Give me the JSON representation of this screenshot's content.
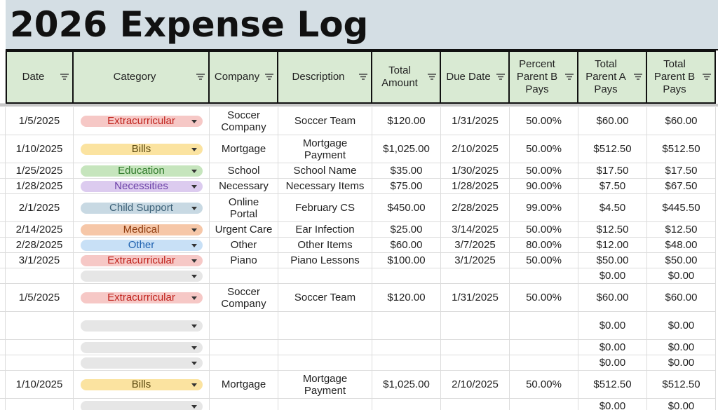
{
  "title": "2026 Expense Log",
  "table": {
    "headers": [
      "Date",
      "Category",
      "Company",
      "Description",
      "Total\nAmount",
      "Due Date",
      "Percent\nParent B\nPays",
      "Total\nParent A\nPays",
      "Total\nParent B\nPays"
    ],
    "rows": [
      {
        "date": "1/5/2025",
        "category": "Extracurricular",
        "category_bg": "#f6c8c6",
        "category_fg": "#c0231d",
        "company": "Soccer\nCompany",
        "description": "Soccer Team",
        "total": "$120.00",
        "due": "1/31/2025",
        "percent": "50.00%",
        "parent_a": "$60.00",
        "parent_b": "$60.00"
      },
      {
        "date": "1/10/2025",
        "category": "Bills",
        "category_bg": "#fbe3a0",
        "category_fg": "#5c4a10",
        "company": "Mortgage",
        "description": "Mortgage\nPayment",
        "total": "$1,025.00",
        "due": "2/10/2025",
        "percent": "50.00%",
        "parent_a": "$512.50",
        "parent_b": "$512.50"
      },
      {
        "date": "1/25/2025",
        "category": "Education",
        "category_bg": "#c6e5bd",
        "category_fg": "#2f7a2a",
        "company": "School",
        "description": "School Name",
        "total": "$35.00",
        "due": "1/30/2025",
        "percent": "50.00%",
        "parent_a": "$17.50",
        "parent_b": "$17.50"
      },
      {
        "date": "1/28/2025",
        "category": "Necessities",
        "category_bg": "#dccbef",
        "category_fg": "#6a3fa6",
        "company": "Necessary",
        "description": "Necessary Items",
        "total": "$75.00",
        "due": "1/28/2025",
        "percent": "90.00%",
        "parent_a": "$7.50",
        "parent_b": "$67.50"
      },
      {
        "date": "2/1/2025",
        "category": "Child Support",
        "category_bg": "#c8d9e3",
        "category_fg": "#3c6177",
        "company": "Online\nPortal",
        "description": "February CS",
        "total": "$450.00",
        "due": "2/28/2025",
        "percent": "99.00%",
        "parent_a": "$4.50",
        "parent_b": "$445.50"
      },
      {
        "date": "2/14/2025",
        "category": "Medical",
        "category_bg": "#f6c7a8",
        "category_fg": "#8f3b0e",
        "company": "Urgent Care",
        "description": "Ear Infection",
        "total": "$25.00",
        "due": "3/14/2025",
        "percent": "50.00%",
        "parent_a": "$12.50",
        "parent_b": "$12.50"
      },
      {
        "date": "2/28/2025",
        "category": "Other",
        "category_bg": "#c8e0f6",
        "category_fg": "#1f62b0",
        "company": "Other",
        "description": "Other Items",
        "total": "$60.00",
        "due": "3/7/2025",
        "percent": "80.00%",
        "parent_a": "$12.00",
        "parent_b": "$48.00"
      },
      {
        "date": "3/1/2025",
        "category": "Extracurricular",
        "category_bg": "#f6c8c6",
        "category_fg": "#c0231d",
        "company": "Piano",
        "description": "Piano Lessons",
        "total": "$100.00",
        "due": "3/1/2025",
        "percent": "50.00%",
        "parent_a": "$50.00",
        "parent_b": "$50.00"
      },
      {
        "date": null,
        "category": null,
        "category_bg": "#e6e6e6",
        "category_fg": "#333333",
        "company": null,
        "description": null,
        "total": null,
        "due": null,
        "percent": null,
        "parent_a": "$0.00",
        "parent_b": "$0.00"
      },
      {
        "date": "1/5/2025",
        "category": "Extracurricular",
        "category_bg": "#f6c8c6",
        "category_fg": "#c0231d",
        "company": "Soccer\nCompany",
        "description": "Soccer Team",
        "total": "$120.00",
        "due": "1/31/2025",
        "percent": "50.00%",
        "parent_a": "$60.00",
        "parent_b": "$60.00"
      },
      {
        "date": null,
        "category": null,
        "category_bg": "#e6e6e6",
        "category_fg": "#333333",
        "company": null,
        "description": null,
        "total": null,
        "due": null,
        "percent": null,
        "parent_a": "$0.00",
        "parent_b": "$0.00"
      },
      {
        "date": null,
        "category": null,
        "category_bg": "#e6e6e6",
        "category_fg": "#333333",
        "company": null,
        "description": null,
        "total": null,
        "due": null,
        "percent": null,
        "parent_a": "$0.00",
        "parent_b": "$0.00"
      },
      {
        "date": null,
        "category": null,
        "category_bg": "#e6e6e6",
        "category_fg": "#333333",
        "company": null,
        "description": null,
        "total": null,
        "due": null,
        "percent": null,
        "parent_a": "$0.00",
        "parent_b": "$0.00"
      },
      {
        "date": "1/10/2025",
        "category": "Bills",
        "category_bg": "#fbe3a0",
        "category_fg": "#5c4a10",
        "company": "Mortgage",
        "description": "Mortgage\nPayment",
        "total": "$1,025.00",
        "due": "2/10/2025",
        "percent": "50.00%",
        "parent_a": "$512.50",
        "parent_b": "$512.50"
      },
      {
        "date": null,
        "category": null,
        "category_bg": "#e6e6e6",
        "category_fg": "#333333",
        "company": null,
        "description": null,
        "total": null,
        "due": null,
        "percent": null,
        "parent_a": "$0.00",
        "parent_b": "$0.00"
      }
    ]
  }
}
